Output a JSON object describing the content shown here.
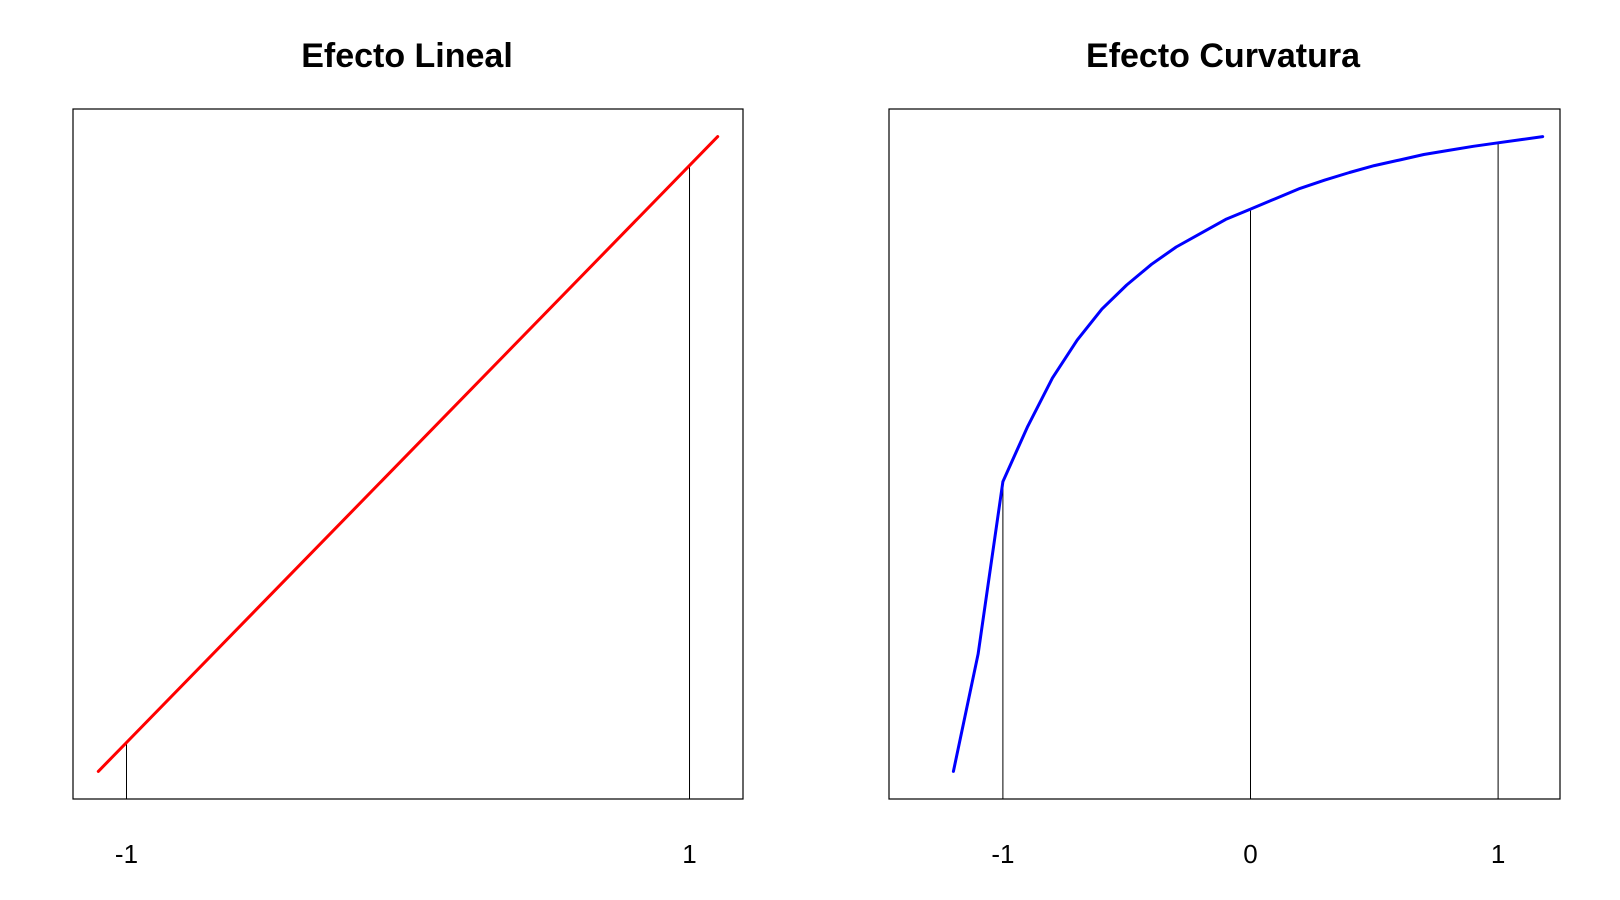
{
  "chart_data": [
    {
      "type": "line",
      "title": "Efecto Lineal",
      "xlabel": "",
      "ylabel": "",
      "xlim": [
        -1.19,
        1.19
      ],
      "ylim": [
        0,
        1
      ],
      "x_ticks": [
        -1,
        1
      ],
      "x_tick_labels": [
        "-1",
        "1"
      ],
      "drop_lines_at_x": [
        -1,
        1
      ],
      "line_color": "#ff0000",
      "series": [
        {
          "x": [
            -1.1,
            1.1
          ],
          "y": [
            0.04,
            0.96
          ]
        }
      ]
    },
    {
      "type": "line",
      "title": "Efecto Curvatura",
      "xlabel": "",
      "ylabel": "",
      "xlim": [
        -1.46,
        1.25
      ],
      "ylim": [
        0,
        1
      ],
      "x_ticks": [
        -1,
        0,
        1
      ],
      "x_tick_labels": [
        "-1",
        "0",
        "1"
      ],
      "drop_lines_at_x": [
        -1,
        0,
        1
      ],
      "line_color": "#0000ff",
      "series": [
        {
          "x": [
            -1.2,
            -1.1,
            -1.0,
            -0.9,
            -0.8,
            -0.7,
            -0.6,
            -0.5,
            -0.4,
            -0.3,
            -0.2,
            -0.1,
            0.0,
            0.1,
            0.2,
            0.3,
            0.4,
            0.5,
            0.6,
            0.7,
            0.8,
            0.9,
            1.0,
            1.1,
            1.18
          ],
          "y": [
            0.04,
            0.21,
            0.46,
            0.54,
            0.61,
            0.665,
            0.71,
            0.745,
            0.775,
            0.8,
            0.82,
            0.84,
            0.855,
            0.87,
            0.885,
            0.897,
            0.908,
            0.918,
            0.926,
            0.934,
            0.94,
            0.946,
            0.951,
            0.956,
            0.96
          ]
        }
      ]
    }
  ]
}
